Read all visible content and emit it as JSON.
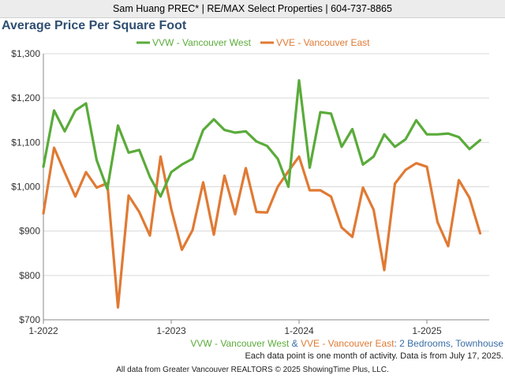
{
  "header": {
    "text": "Sam Huang PREC* | RE/MAX Select Properties | 604-737-8865"
  },
  "colors": {
    "vvw": "#5aab3a",
    "vve": "#e07a34",
    "title": "#2f4f72",
    "subtitle_blue": "#3a6ea5"
  },
  "subtitle": {
    "series1": "VVW - Vancouver West",
    "amp": " & ",
    "series2": "VVE - Vancouver East",
    "rest": ": 2 Bedrooms, Townhouse"
  },
  "note": "Each data point is one month of activity. Data is from July 17, 2025.",
  "footer": "All data from Greater Vancouver REALTORS © 2025 ShowingTime Plus, LLC.",
  "chart_data": {
    "type": "line",
    "title": "Average Price Per Square Foot",
    "x_start": "2022-01",
    "x_ticks": [
      "1-2022",
      "1-2023",
      "1-2024",
      "1-2025"
    ],
    "y_ticks": [
      "$700",
      "$800",
      "$900",
      "$1,000",
      "$1,100",
      "$1,200",
      "$1,300"
    ],
    "ylim": [
      700,
      1300
    ],
    "grid": true,
    "legend_position": "top",
    "series": [
      {
        "name": "VVW - Vancouver West",
        "values": [
          1045,
          1172,
          1125,
          1172,
          1188,
          1060,
          995,
          1138,
          1077,
          1083,
          1022,
          978,
          1033,
          1050,
          1063,
          1128,
          1152,
          1128,
          1122,
          1125,
          1102,
          1092,
          1063,
          1000,
          1240,
          1043,
          1168,
          1165,
          1090,
          1130,
          1050,
          1068,
          1118,
          1090,
          1107,
          1150,
          1118,
          1118,
          1120,
          1112,
          1085,
          1105
        ]
      },
      {
        "name": "VVE - Vancouver East",
        "values": [
          940,
          1088,
          1032,
          978,
          1033,
          998,
          1008,
          728,
          980,
          943,
          890,
          1068,
          950,
          858,
          902,
          1010,
          892,
          1025,
          938,
          1042,
          943,
          942,
          1000,
          1035,
          1068,
          992,
          992,
          978,
          908,
          887,
          998,
          948,
          812,
          1007,
          1038,
          1053,
          1045,
          920,
          866,
          1015,
          975,
          895
        ]
      }
    ]
  }
}
